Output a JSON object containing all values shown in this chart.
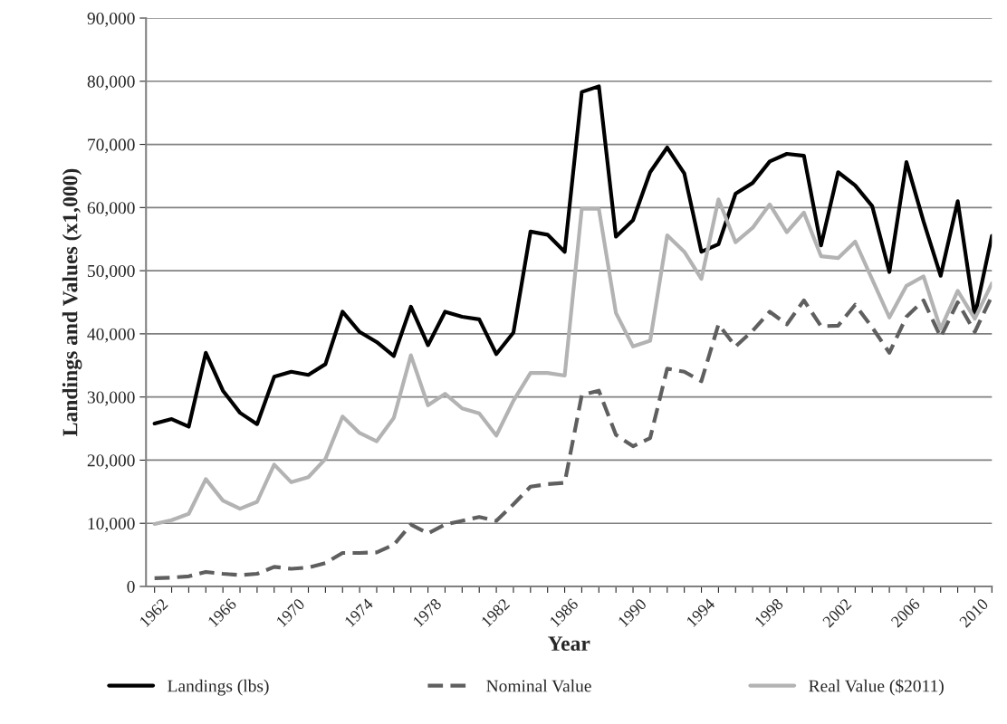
{
  "chart_data": {
    "type": "line",
    "xlabel": "Year",
    "ylabel": "Landings and Values (x1,000)",
    "categories": [
      "1962",
      null,
      null,
      null,
      "1966",
      null,
      null,
      null,
      "1970",
      null,
      null,
      null,
      "1974",
      null,
      null,
      null,
      "1978",
      null,
      null,
      null,
      "1982",
      null,
      null,
      null,
      "1986",
      null,
      null,
      null,
      "1990",
      null,
      null,
      null,
      "1994",
      null,
      null,
      null,
      "1998",
      null,
      null,
      null,
      "2002",
      null,
      null,
      null,
      "2006",
      null,
      null,
      null,
      "2010",
      null
    ],
    "ylim": [
      0,
      90000
    ],
    "yticks": [
      {
        "value": 0,
        "label": "0"
      },
      {
        "value": 10000,
        "label": "10,000"
      },
      {
        "value": 20000,
        "label": "20,000"
      },
      {
        "value": 30000,
        "label": "30,000"
      },
      {
        "value": 40000,
        "label": "40,000"
      },
      {
        "value": 50000,
        "label": "50,000"
      },
      {
        "value": 60000,
        "label": "60,000"
      },
      {
        "value": 70000,
        "label": "70,000"
      },
      {
        "value": 80000,
        "label": "80,000"
      },
      {
        "value": 90000,
        "label": "90,000"
      }
    ],
    "grid": "y",
    "legend": "bottom",
    "series": [
      {
        "name": "Landings (lbs)",
        "color": "#000000",
        "line_style": "solid",
        "values": [
          25800,
          26500,
          25300,
          37000,
          31000,
          27500,
          25700,
          33200,
          34000,
          33500,
          35200,
          43500,
          40300,
          38700,
          36500,
          44300,
          38200,
          43500,
          42700,
          42300,
          36800,
          40200,
          56200,
          55700,
          53000,
          78300,
          79200,
          55400,
          58000,
          65600,
          69500,
          65400,
          53000,
          54200,
          62200,
          63900,
          67300,
          68500,
          68200,
          54000,
          65600,
          63500,
          60200,
          49800,
          67200,
          57800,
          49200,
          61000,
          42800,
          55500
        ]
      },
      {
        "name": "Nominal Value",
        "color": "#5f5f5f",
        "line_style": "dashed",
        "values": [
          1300,
          1400,
          1600,
          2300,
          2000,
          1800,
          2000,
          3100,
          2800,
          3000,
          3700,
          5300,
          5300,
          5400,
          6600,
          9800,
          8400,
          9800,
          10400,
          11000,
          10400,
          13000,
          15800,
          16200,
          16400,
          30300,
          31000,
          24000,
          22200,
          23500,
          34500,
          34000,
          32500,
          41500,
          38000,
          40500,
          43500,
          41500,
          45300,
          41200,
          41300,
          44600,
          41000,
          37000,
          42700,
          45300,
          39500,
          45000,
          40300,
          46000
        ]
      },
      {
        "name": "Real Value ($2011)",
        "color": "#b3b3b3",
        "line_style": "solid",
        "values": [
          9900,
          10500,
          11500,
          17000,
          13600,
          12300,
          13400,
          19300,
          16500,
          17300,
          20200,
          26900,
          24300,
          23000,
          26700,
          36600,
          28700,
          30500,
          28200,
          27400,
          23900,
          29400,
          33800,
          33800,
          33400,
          59800,
          59800,
          43300,
          38000,
          38900,
          55600,
          53000,
          48700,
          61300,
          54500,
          56800,
          60500,
          56100,
          59200,
          52300,
          52000,
          54600,
          48600,
          42600,
          47600,
          49100,
          40800,
          46800,
          42400,
          48000
        ]
      }
    ]
  }
}
